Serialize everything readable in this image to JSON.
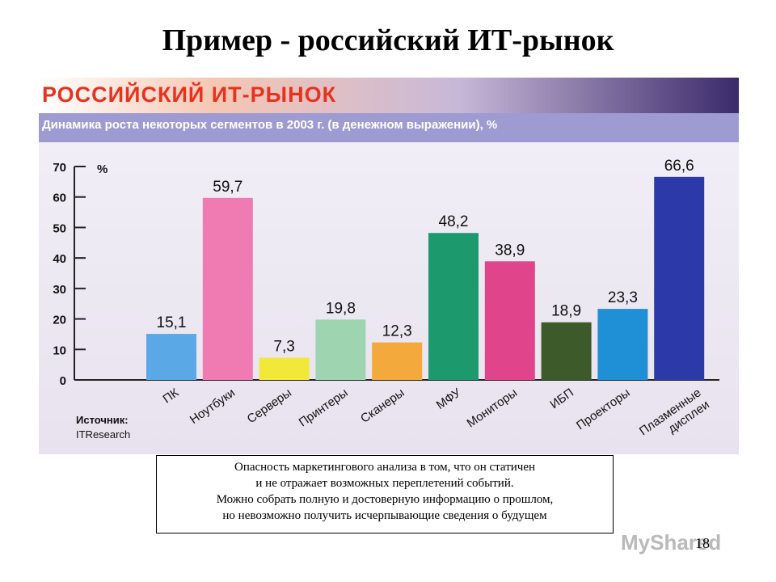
{
  "slide": {
    "title": "Пример - российский ИТ-рынок",
    "page_number": "18",
    "watermark": "MyShared"
  },
  "chart_data": {
    "type": "bar",
    "title": "РОССИЙСКИЙ ИТ-РЫНОК",
    "subtitle": "Динамика роста некоторых сегментов в 2003 г. (в денежном выражении), %",
    "ylabel": "%",
    "ylim": [
      0,
      70
    ],
    "yticks": [
      0,
      10,
      20,
      30,
      40,
      50,
      60,
      70
    ],
    "categories": [
      "ПК",
      "Ноутбуки",
      "Серверы",
      "Принтеры",
      "Сканеры",
      "МФУ",
      "Мониторы",
      "ИБП",
      "Проекторы",
      "Плазменные дисплеи"
    ],
    "values": [
      15.1,
      59.7,
      7.3,
      19.8,
      12.3,
      48.2,
      38.9,
      18.9,
      23.3,
      66.6
    ],
    "value_labels": [
      "15,1",
      "59,7",
      "7,3",
      "19,8",
      "12,3",
      "48,2",
      "38,9",
      "18,9",
      "23,3",
      "66,6"
    ],
    "colors": [
      "#5aa9e6",
      "#f07ab2",
      "#f2e83a",
      "#9fd4b0",
      "#f4a93c",
      "#1c9a6e",
      "#e0448a",
      "#3d5a2a",
      "#1f8fd6",
      "#2b3aa8"
    ],
    "source_label": "Источник:",
    "source_value": "ITResearch",
    "grid": false
  },
  "note": {
    "lines": [
      "Опасность маркетингового анализа в том, что он статичен",
      "и не отражает возможных переплетений событий.",
      "Можно собрать полную и достоверную информацию о прошлом,",
      "но невозможно получить исчерпывающие сведения о будущем"
    ]
  }
}
